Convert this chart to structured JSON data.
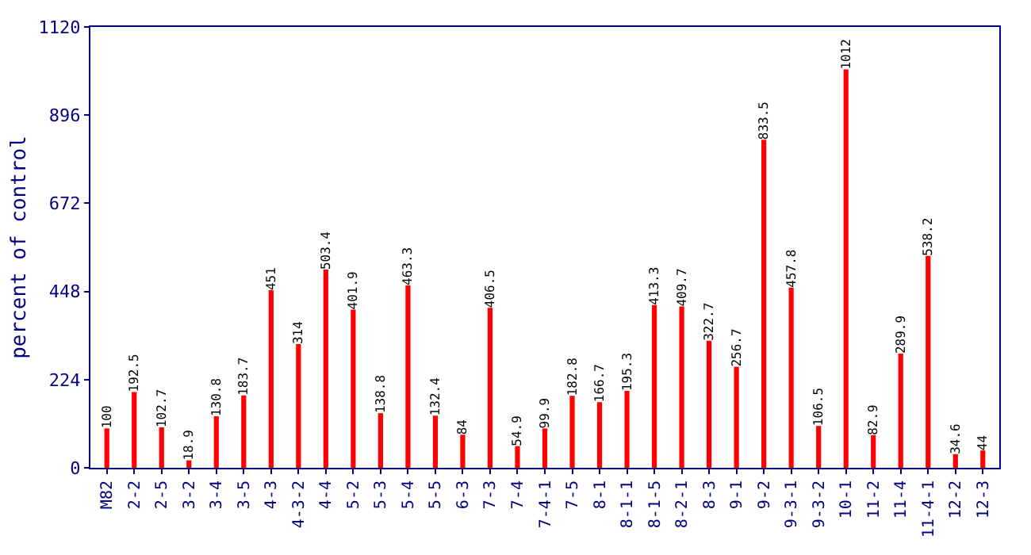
{
  "chart_data": {
    "type": "bar",
    "ylabel": "percent of control",
    "categories": [
      "M82",
      "2-2",
      "2-5",
      "3-2",
      "3-4",
      "3-5",
      "4-3",
      "4-3-2",
      "4-4",
      "5-2",
      "5-3",
      "5-4",
      "5-5",
      "6-3",
      "7-3",
      "7-4",
      "7-4-1",
      "7-5",
      "8-1",
      "8-1-1",
      "8-1-5",
      "8-2-1",
      "8-3",
      "9-1",
      "9-2",
      "9-3-1",
      "9-3-2",
      "10-1",
      "11-2",
      "11-4",
      "11-4-1",
      "12-2",
      "12-3"
    ],
    "values": [
      100,
      192.5,
      102.7,
      18.9,
      130.8,
      183.7,
      451,
      314,
      503.4,
      401.9,
      138.8,
      463.3,
      132.4,
      84,
      406.5,
      54.9,
      99.9,
      182.8,
      166.7,
      195.3,
      413.3,
      409.7,
      322.7,
      256.7,
      833.5,
      457.8,
      106.5,
      1012,
      82.9,
      289.9,
      538.2,
      34.6,
      44
    ],
    "color": "#ff0000",
    "data_labels": true,
    "ylim": [
      0,
      1120
    ],
    "yticks": [
      0,
      224,
      448,
      672,
      896,
      1120
    ]
  }
}
